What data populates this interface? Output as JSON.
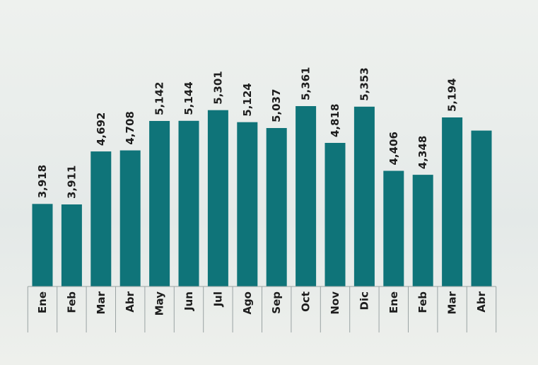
{
  "chart_data": {
    "type": "bar",
    "categories": [
      "Ene",
      "Feb",
      "Mar",
      "Abr",
      "May",
      "Jun",
      "Jul",
      "Ago",
      "Sep",
      "Oct",
      "Nov",
      "Dic",
      "Ene",
      "Feb",
      "Mar",
      "Abr"
    ],
    "values": [
      3918,
      3911,
      4692,
      4708,
      5142,
      5144,
      5301,
      5124,
      5037,
      5361,
      4818,
      5353,
      4406,
      4348,
      5194,
      5000
    ],
    "labels": [
      "3,918",
      "3,911",
      "4,692",
      "4,708",
      "5,142",
      "5,144",
      "5,301",
      "5,124",
      "5,037",
      "5,361",
      "4,818",
      "5,353",
      "4,406",
      "4,348",
      "5,194",
      ""
    ],
    "title": "",
    "xlabel": "",
    "ylabel": "",
    "ylim": [
      2700,
      5500
    ],
    "grid": false,
    "legend": "none",
    "colors": {
      "bar": "#0f7479",
      "axis": "#9aa3a3",
      "text": "#1d1d1d"
    }
  }
}
